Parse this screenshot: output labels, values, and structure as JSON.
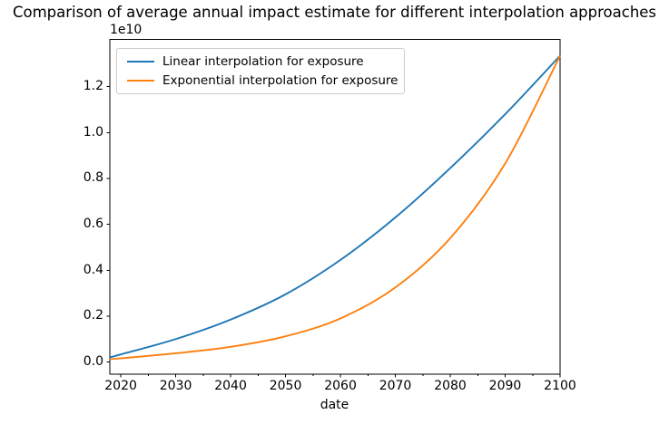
{
  "chart_data": {
    "type": "line",
    "title": "Comparison of average annual impact estimate for different interpolation approaches",
    "xlabel": "date",
    "ylabel": "",
    "y_scale_label": "1e10",
    "grid": false,
    "legend_position": "upper left",
    "xlim": [
      2018,
      2100
    ],
    "ylim_1e10": [
      -0.053,
      1.406
    ],
    "x_tick_labels": [
      "2020",
      "2030",
      "2040",
      "2050",
      "2060",
      "2070",
      "2080",
      "2090",
      "2100"
    ],
    "x_minor_ticks": [
      2025,
      2035,
      2045,
      2055,
      2065,
      2075,
      2085,
      2095
    ],
    "y_tick_labels": [
      "0.0",
      "0.2",
      "0.4",
      "0.6",
      "0.8",
      "1.0",
      "1.2"
    ],
    "x": [
      2018,
      2020,
      2030,
      2040,
      2050,
      2060,
      2070,
      2080,
      2090,
      2100
    ],
    "series": [
      {
        "name": "Linear interpolation for exposure",
        "color": "#1f77b4",
        "values_1e10": [
          0.02,
          0.033,
          0.1,
          0.185,
          0.295,
          0.445,
          0.63,
          0.845,
          1.08,
          1.335
        ]
      },
      {
        "name": "Exponential interpolation for exposure",
        "color": "#ff7f0e",
        "values_1e10": [
          0.012,
          0.016,
          0.038,
          0.066,
          0.112,
          0.19,
          0.325,
          0.54,
          0.865,
          1.335
        ]
      }
    ]
  }
}
